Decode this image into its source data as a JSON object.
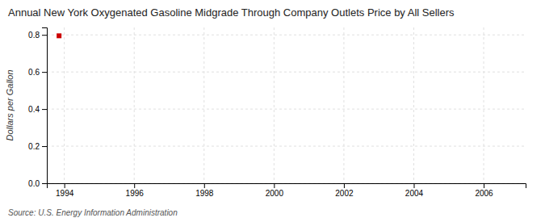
{
  "chart_data": {
    "type": "scatter",
    "title": "Annual New York Oxygenated Gasoline Midgrade Through Company Outlets Price by All Sellers",
    "ylabel": "Dollars per Gallon",
    "source": "Source: U.S. Energy Information Administration",
    "x": [
      1993.85
    ],
    "values": [
      0.795
    ],
    "color": "#cc0000",
    "marker": "square",
    "xlim": [
      1993.5,
      2007.2
    ],
    "ylim": [
      0.0,
      0.84
    ],
    "xticks": [
      1994,
      1996,
      1998,
      2000,
      2002,
      2004,
      2006
    ],
    "yticks": [
      {
        "value": 0.0,
        "label": "0.0"
      },
      0.2,
      0.4,
      0.6,
      0.8
    ],
    "grid": true
  }
}
